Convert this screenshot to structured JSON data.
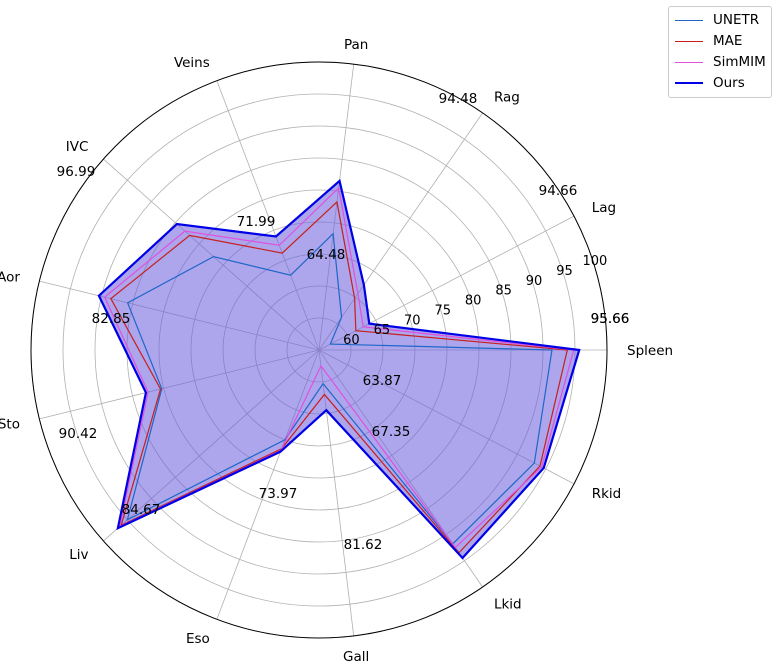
{
  "chart_data": {
    "type": "radar",
    "categories": [
      "Spleen",
      "Lag",
      "Rag",
      "Pan",
      "Veins",
      "IVC",
      "Aor",
      "Sto",
      "Liv",
      "Eso",
      "Gall",
      "Lkid",
      "Rkid"
    ],
    "radial_ticks": [
      "60",
      "65",
      "70",
      "75",
      "80",
      "85",
      "90",
      "95",
      "100"
    ],
    "rlim": [
      55,
      100
    ],
    "grid": true,
    "legend_position": "upper-right-outside",
    "series": [
      {
        "name": "UNETR",
        "color": "#1f66c8",
        "width": 1.2,
        "values": [
          91.4,
          57.0,
          61.2,
          73.3,
          67.5,
          77.0,
          85.8,
          80.3,
          95.0,
          70.0,
          60.3,
          91.8,
          93.0
        ]
      },
      {
        "name": "MAE",
        "color": "#c81e1e",
        "width": 1.2,
        "values": [
          93.8,
          61.5,
          64.8,
          78.3,
          71.2,
          82.0,
          88.5,
          80.5,
          96.3,
          71.5,
          62.0,
          93.5,
          94.0
        ]
      },
      {
        "name": "SimMIM",
        "color": "#e050e0",
        "width": 1.2,
        "values": [
          94.8,
          62.8,
          65.7,
          80.5,
          72.5,
          83.0,
          89.5,
          82.5,
          96.6,
          71.8,
          57.5,
          92.5,
          94.3
        ]
      },
      {
        "name": "Ours",
        "color": "#0000e6",
        "width": 2.2,
        "values": [
          95.66,
          63.87,
          67.35,
          81.62,
          73.97,
          84.67,
          90.42,
          82.85,
          96.99,
          71.99,
          64.48,
          94.48,
          94.66
        ]
      }
    ],
    "fill": {
      "series": "Ours",
      "color": "#6a5cdd",
      "opacity": 0.55
    },
    "annotations": [
      "95.66",
      "63.87",
      "67.35",
      "81.62",
      "73.97",
      "84.67",
      "90.42",
      "82.85",
      "96.99",
      "71.99",
      "64.48",
      "94.48",
      "94.66",
      "95.66"
    ]
  }
}
